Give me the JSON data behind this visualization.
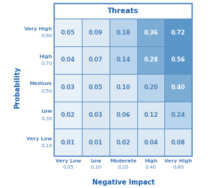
{
  "title": "Threats",
  "xlabel": "Negative Impact",
  "ylabel": "Probability",
  "matrix": [
    [
      0.05,
      0.09,
      0.18,
      0.36,
      0.72
    ],
    [
      0.04,
      0.07,
      0.14,
      0.28,
      0.56
    ],
    [
      0.03,
      0.05,
      0.1,
      0.2,
      0.4
    ],
    [
      0.02,
      0.03,
      0.06,
      0.12,
      0.24
    ],
    [
      0.01,
      0.01,
      0.02,
      0.04,
      0.08
    ]
  ],
  "row_labels": [
    [
      "Very High",
      "0.90"
    ],
    [
      "High",
      "0.70"
    ],
    [
      "Medium",
      "0.50"
    ],
    [
      "Low",
      "0.30"
    ],
    [
      "Very Low",
      "0.10"
    ]
  ],
  "col_labels": [
    [
      "Very Low",
      "0.05"
    ],
    [
      "Low",
      "0.10"
    ],
    [
      "Moderate",
      "0.20"
    ],
    [
      "High",
      "0.40"
    ],
    [
      "Very High",
      "0.80"
    ]
  ],
  "cell_colors": [
    [
      "#e8f0f8",
      "#dce9f5",
      "#b8d4ec",
      "#7badd4",
      "#5b96c8"
    ],
    [
      "#e8f0f8",
      "#dce9f5",
      "#b8d4ec",
      "#7badd4",
      "#5b96c8"
    ],
    [
      "#e8f0f8",
      "#dce9f5",
      "#dce9f5",
      "#b8d4ec",
      "#7badd4"
    ],
    [
      "#e8f0f8",
      "#dce9f5",
      "#dce9f5",
      "#dce9f5",
      "#b8d4ec"
    ],
    [
      "#e8f0f8",
      "#dce9f5",
      "#dce9f5",
      "#dce9f5",
      "#dce9f5"
    ]
  ],
  "text_colors": [
    [
      "#4a7fb5",
      "#4a7fb5",
      "#4a7fb5",
      "#ffffff",
      "#ffffff"
    ],
    [
      "#4a7fb5",
      "#4a7fb5",
      "#4a7fb5",
      "#ffffff",
      "#ffffff"
    ],
    [
      "#4a7fb5",
      "#4a7fb5",
      "#4a7fb5",
      "#4a7fb5",
      "#ffffff"
    ],
    [
      "#4a7fb5",
      "#4a7fb5",
      "#4a7fb5",
      "#4a7fb5",
      "#4a7fb5"
    ],
    [
      "#4a7fb5",
      "#4a7fb5",
      "#4a7fb5",
      "#4a7fb5",
      "#4a7fb5"
    ]
  ],
  "header_color": "#ffffff",
  "border_color": "#5b8fc7",
  "title_color": "#1a5fa8",
  "label_color": "#4a7fb5",
  "axis_label_color": "#1a5fa8",
  "background_color": "#ffffff",
  "cell_fontsize": 6.0,
  "label_fontsize": 5.2,
  "title_fontsize": 7.5,
  "axis_label_fontsize": 7.0
}
